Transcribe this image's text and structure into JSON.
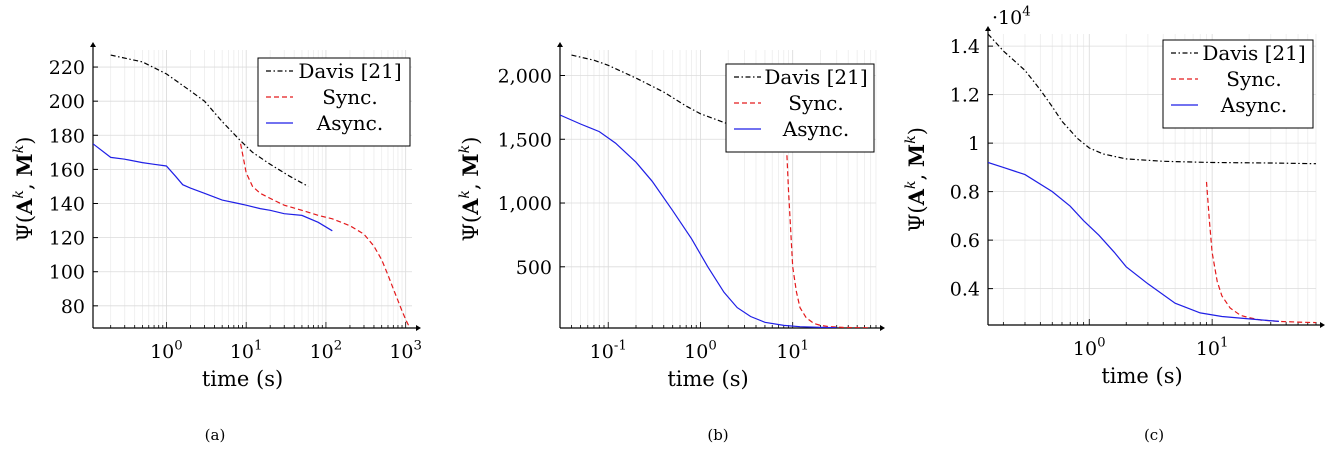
{
  "chart_data": [
    {
      "type": "line",
      "caption": "(a)",
      "xlabel": "time (s)",
      "ylabel": "Ψ(A^k, M^k)",
      "xscale": "log",
      "xlim": [
        0.12,
        1200
      ],
      "ylim": [
        67,
        230
      ],
      "xticks": [
        {
          "v": 1,
          "label": "10^0"
        },
        {
          "v": 10,
          "label": "10^1"
        },
        {
          "v": 100,
          "label": "10^2"
        },
        {
          "v": 1000,
          "label": "10^3"
        }
      ],
      "yticks": [
        {
          "v": 80,
          "label": "80"
        },
        {
          "v": 100,
          "label": "100"
        },
        {
          "v": 120,
          "label": "120"
        },
        {
          "v": 140,
          "label": "140"
        },
        {
          "v": 160,
          "label": "160"
        },
        {
          "v": 180,
          "label": "180"
        },
        {
          "v": 200,
          "label": "200"
        },
        {
          "v": 220,
          "label": "220"
        }
      ],
      "legend_position": "top-right",
      "grid": true,
      "series": [
        {
          "name": "Davis [21]",
          "style": "dash-dot",
          "color": "#000000",
          "x": [
            0.2,
            0.5,
            1,
            2,
            3,
            5,
            8,
            12,
            20,
            35,
            60
          ],
          "y": [
            227,
            223,
            216,
            206,
            200,
            188,
            178,
            170,
            163,
            156,
            150
          ]
        },
        {
          "name": "Sync.",
          "style": "dashed",
          "color": "#e41a1c",
          "x": [
            8.5,
            10,
            12,
            15,
            20,
            30,
            50,
            80,
            120,
            200,
            300,
            400,
            500,
            600,
            700,
            800,
            900,
            1000,
            1100
          ],
          "y": [
            175,
            158,
            150,
            146,
            143,
            139,
            136,
            133,
            131,
            127,
            122,
            115,
            107,
            98,
            90,
            83,
            77,
            72,
            68
          ]
        },
        {
          "name": "Async.",
          "style": "solid",
          "color": "#1f1fe6",
          "x": [
            0.12,
            0.2,
            0.3,
            0.5,
            0.7,
            1,
            1.3,
            1.6,
            2,
            3,
            5,
            8,
            10,
            15,
            20,
            30,
            50,
            80,
            120
          ],
          "y": [
            175,
            167,
            166,
            164,
            163,
            162,
            156,
            151,
            149,
            146,
            142,
            140,
            139,
            137,
            136,
            134,
            133,
            129,
            124
          ]
        }
      ]
    },
    {
      "type": "line",
      "caption": "(b)",
      "xlabel": "time (s)",
      "ylabel": "Ψ(A^k, M^k)",
      "xscale": "log",
      "xlim": [
        0.03,
        80
      ],
      "ylim": [
        20,
        2200
      ],
      "xticks": [
        {
          "v": 0.1,
          "label": "10^-1"
        },
        {
          "v": 1,
          "label": "10^0"
        },
        {
          "v": 10,
          "label": "10^1"
        }
      ],
      "yticks": [
        {
          "v": 500,
          "label": "500"
        },
        {
          "v": 1000,
          "label": "1,000"
        },
        {
          "v": 1500,
          "label": "1,500"
        },
        {
          "v": 2000,
          "label": "2,000"
        }
      ],
      "legend_position": "top-right",
      "grid": true,
      "series": [
        {
          "name": "Davis [21]",
          "style": "dash-dot",
          "color": "#000000",
          "x": [
            0.04,
            0.07,
            0.1,
            0.2,
            0.4,
            0.7,
            1,
            2,
            4,
            8,
            15,
            25
          ],
          "y": [
            2160,
            2120,
            2080,
            1980,
            1870,
            1760,
            1700,
            1620,
            1560,
            1530,
            1510,
            1500
          ]
        },
        {
          "name": "Sync.",
          "style": "dashed",
          "color": "#e41a1c",
          "x": [
            8.5,
            9,
            9.5,
            10,
            11,
            12,
            14,
            17,
            20,
            25,
            35,
            50,
            70
          ],
          "y": [
            1500,
            1100,
            800,
            500,
            300,
            180,
            100,
            55,
            40,
            30,
            25,
            22,
            21
          ]
        },
        {
          "name": "Async.",
          "style": "solid",
          "color": "#1f1fe6",
          "x": [
            0.03,
            0.05,
            0.08,
            0.12,
            0.2,
            0.3,
            0.5,
            0.8,
            1.2,
            1.8,
            2.5,
            3.5,
            5,
            8,
            12,
            20,
            30
          ],
          "y": [
            1690,
            1620,
            1560,
            1470,
            1320,
            1170,
            940,
            720,
            500,
            300,
            180,
            110,
            65,
            40,
            30,
            25,
            22
          ]
        }
      ]
    },
    {
      "type": "line",
      "caption": "(c)",
      "xlabel": "time (s)",
      "ylabel": "Ψ(A^k, M^k)",
      "yexponent": "·10^4",
      "xscale": "log",
      "xlim": [
        0.15,
        70
      ],
      "ylim": [
        0.25,
        1.45
      ],
      "xticks": [
        {
          "v": 1,
          "label": "10^0"
        },
        {
          "v": 10,
          "label": "10^1"
        }
      ],
      "yticks": [
        {
          "v": 0.4,
          "label": "0.4"
        },
        {
          "v": 0.6,
          "label": "0.6"
        },
        {
          "v": 0.8,
          "label": "0.8"
        },
        {
          "v": 1,
          "label": "1"
        },
        {
          "v": 1.2,
          "label": "1.2"
        },
        {
          "v": 1.4,
          "label": "1.4"
        }
      ],
      "legend_position": "top-right",
      "grid": true,
      "series": [
        {
          "name": "Davis [21]",
          "style": "dash-dot",
          "color": "#000000",
          "x": [
            0.15,
            0.2,
            0.3,
            0.4,
            0.5,
            0.6,
            0.8,
            1,
            1.3,
            2,
            4,
            10,
            30,
            70
          ],
          "y": [
            1.45,
            1.38,
            1.3,
            1.22,
            1.15,
            1.09,
            1.02,
            0.98,
            0.955,
            0.935,
            0.925,
            0.92,
            0.918,
            0.915
          ]
        },
        {
          "name": "Sync.",
          "style": "dashed",
          "color": "#e41a1c",
          "x": [
            9,
            9.5,
            10,
            11,
            12,
            14,
            17,
            20,
            25,
            35,
            50,
            70
          ],
          "y": [
            0.84,
            0.68,
            0.55,
            0.43,
            0.37,
            0.32,
            0.29,
            0.28,
            0.27,
            0.265,
            0.262,
            0.26
          ]
        },
        {
          "name": "Async.",
          "style": "solid",
          "color": "#1f1fe6",
          "x": [
            0.15,
            0.2,
            0.3,
            0.5,
            0.7,
            0.9,
            1.2,
            1.6,
            2,
            3,
            5,
            8,
            12,
            20,
            35
          ],
          "y": [
            0.92,
            0.9,
            0.87,
            0.8,
            0.74,
            0.68,
            0.62,
            0.55,
            0.49,
            0.42,
            0.34,
            0.3,
            0.285,
            0.275,
            0.265
          ]
        }
      ]
    }
  ]
}
